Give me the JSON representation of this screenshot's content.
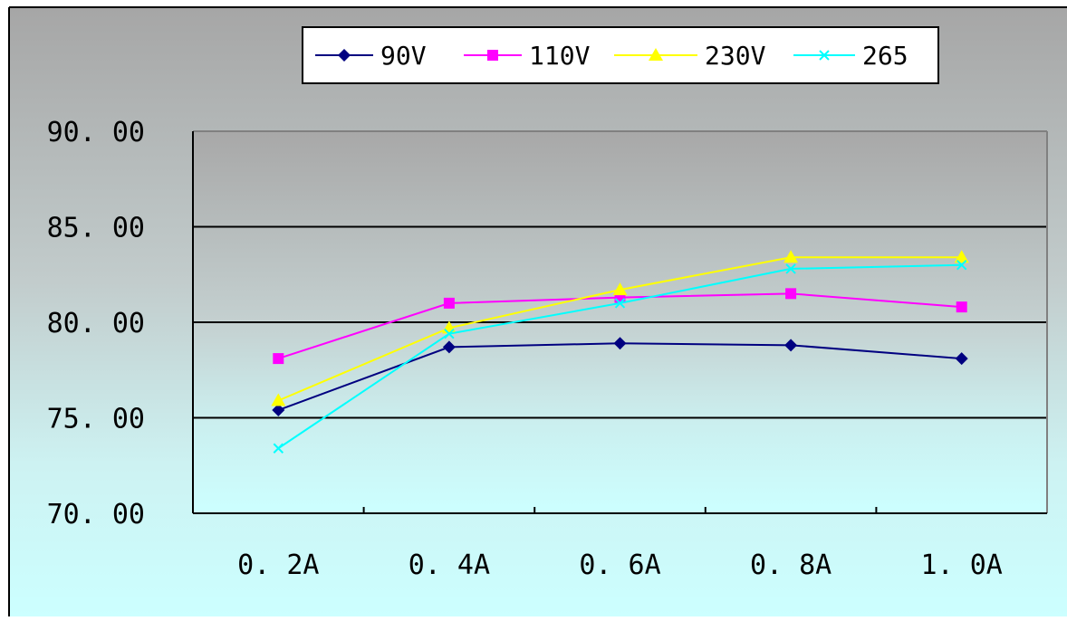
{
  "chart_data": {
    "type": "line",
    "categories": [
      "0. 2A",
      "0. 4A",
      "0. 6A",
      "0. 8A",
      "1. 0A"
    ],
    "ylim": [
      70,
      90
    ],
    "yticks": [
      "70. 00",
      "75. 00",
      "80. 00",
      "85. 00",
      "90. 00"
    ],
    "ytick_values": [
      70,
      75,
      80,
      85,
      90
    ],
    "grid": true,
    "legend_position": "top",
    "series": [
      {
        "name": "90V",
        "color": "#000080",
        "marker": "diamond",
        "values": [
          75.4,
          78.7,
          78.9,
          78.8,
          78.1
        ]
      },
      {
        "name": "110V",
        "color": "#ff00ff",
        "marker": "square",
        "values": [
          78.1,
          81.0,
          81.3,
          81.5,
          80.8
        ]
      },
      {
        "name": "230V",
        "color": "#ffff00",
        "marker": "triangle",
        "values": [
          75.9,
          79.7,
          81.7,
          83.4,
          83.4
        ]
      },
      {
        "name": "265",
        "color": "#00ffff",
        "marker": "x",
        "values": [
          73.4,
          79.4,
          81.0,
          82.8,
          83.0
        ]
      }
    ]
  }
}
